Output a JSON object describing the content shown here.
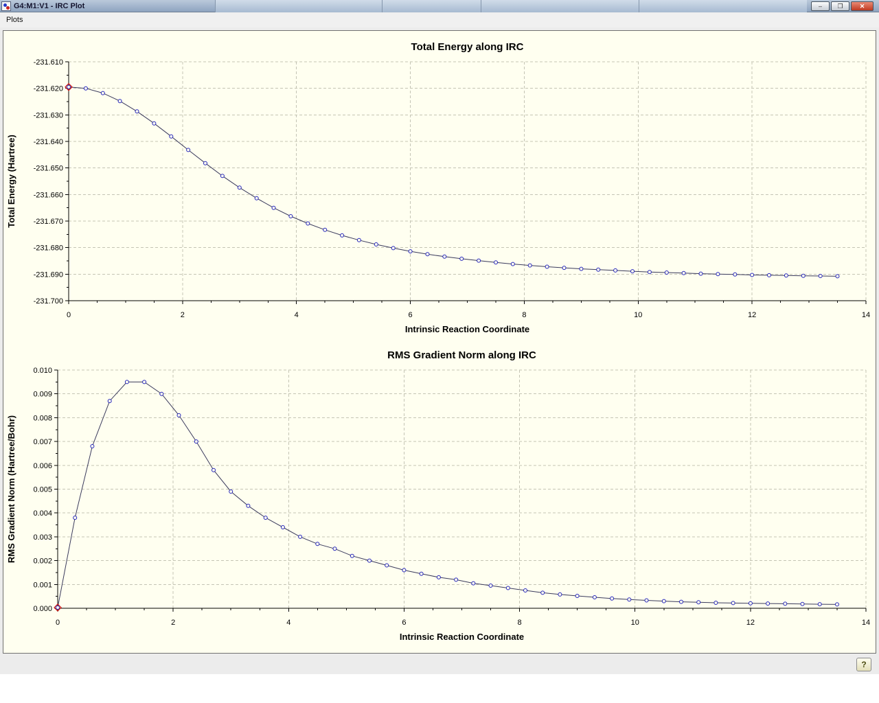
{
  "window": {
    "title": "G4:M1:V1 - IRC Plot",
    "controls": {
      "minimize": "–",
      "maximize": "❐",
      "close": "✕"
    }
  },
  "menu_bar": {
    "items": [
      {
        "label": "Plots"
      }
    ]
  },
  "status_bar": {
    "help_label": "?"
  },
  "colors": {
    "plot_bg": "#fffff0",
    "series_line": "#3a3a5c",
    "marker": "#2323bb",
    "first_marker": "#cc1111",
    "grid": "#c4c4b4",
    "titlebar": "#8ea4c0"
  },
  "chart_data": [
    {
      "type": "line",
      "title": "Total Energy along IRC",
      "xlabel": "Intrinsic Reaction Coordinate",
      "ylabel": "Total Energy (Hartree)",
      "xlim": [
        0,
        14
      ],
      "ylim": [
        -231.7,
        -231.61
      ],
      "grid": "dashed",
      "legend": "none",
      "marker": "circle",
      "highlight_first_point": true,
      "x_ticks": [
        0,
        2,
        4,
        6,
        8,
        10,
        12,
        14
      ],
      "x_tick_labels": [
        "0",
        "2",
        "4",
        "6",
        "8",
        "10",
        "12",
        "14"
      ],
      "y_ticks": [
        -231.61,
        -231.62,
        -231.63,
        -231.64,
        -231.65,
        -231.66,
        -231.67,
        -231.68,
        -231.69,
        -231.7
      ],
      "y_tick_labels": [
        "-231.610",
        "-231.620",
        "-231.630",
        "-231.640",
        "-231.650",
        "-231.660",
        "-231.670",
        "-231.680",
        "-231.690",
        "-231.700"
      ],
      "x": [
        0,
        0.3,
        0.6,
        0.9,
        1.2,
        1.5,
        1.8,
        2.1,
        2.4,
        2.7,
        3.0,
        3.3,
        3.6,
        3.9,
        4.2,
        4.5,
        4.8,
        5.1,
        5.4,
        5.7,
        6.0,
        6.3,
        6.6,
        6.9,
        7.2,
        7.5,
        7.8,
        8.1,
        8.4,
        8.7,
        9.0,
        9.3,
        9.6,
        9.9,
        10.2,
        10.5,
        10.8,
        11.1,
        11.4,
        11.7,
        12.0,
        12.3,
        12.6,
        12.9,
        13.2,
        13.5
      ],
      "y": [
        -231.6195,
        -231.62,
        -231.6218,
        -231.6248,
        -231.6287,
        -231.6332,
        -231.6381,
        -231.6432,
        -231.6482,
        -231.653,
        -231.6574,
        -231.6614,
        -231.665,
        -231.6682,
        -231.6709,
        -231.6733,
        -231.6754,
        -231.6772,
        -231.6788,
        -231.6802,
        -231.6814,
        -231.6825,
        -231.6834,
        -231.6842,
        -231.6849,
        -231.6856,
        -231.6862,
        -231.6867,
        -231.6872,
        -231.6876,
        -231.688,
        -231.6883,
        -231.6886,
        -231.6889,
        -231.6892,
        -231.6894,
        -231.6896,
        -231.6898,
        -231.69,
        -231.6901,
        -231.6903,
        -231.6904,
        -231.6905,
        -231.6906,
        -231.6907,
        -231.6908
      ]
    },
    {
      "type": "line",
      "title": "RMS Gradient Norm along IRC",
      "xlabel": "Intrinsic Reaction Coordinate",
      "ylabel": "RMS Gradient Norm (Hartree/Bohr)",
      "xlim": [
        0,
        14
      ],
      "ylim": [
        0.0,
        0.01
      ],
      "grid": "dashed",
      "legend": "none",
      "marker": "circle",
      "highlight_first_point": true,
      "x_ticks": [
        0,
        2,
        4,
        6,
        8,
        10,
        12,
        14
      ],
      "x_tick_labels": [
        "0",
        "2",
        "4",
        "6",
        "8",
        "10",
        "12",
        "14"
      ],
      "y_ticks": [
        0.0,
        0.001,
        0.002,
        0.003,
        0.004,
        0.005,
        0.006,
        0.007,
        0.008,
        0.009,
        0.01
      ],
      "y_tick_labels": [
        "0.000",
        "0.001",
        "0.002",
        "0.003",
        "0.004",
        "0.005",
        "0.006",
        "0.007",
        "0.008",
        "0.009",
        "0.010"
      ],
      "x": [
        0,
        0.3,
        0.6,
        0.9,
        1.2,
        1.5,
        1.8,
        2.1,
        2.4,
        2.7,
        3.0,
        3.3,
        3.6,
        3.9,
        4.2,
        4.5,
        4.8,
        5.1,
        5.4,
        5.7,
        6.0,
        6.3,
        6.6,
        6.9,
        7.2,
        7.5,
        7.8,
        8.1,
        8.4,
        8.7,
        9.0,
        9.3,
        9.6,
        9.9,
        10.2,
        10.5,
        10.8,
        11.1,
        11.4,
        11.7,
        12.0,
        12.3,
        12.6,
        12.9,
        13.2,
        13.5
      ],
      "y": [
        3e-05,
        0.0038,
        0.0068,
        0.0087,
        0.0095,
        0.0095,
        0.009,
        0.0081,
        0.007,
        0.0058,
        0.0049,
        0.0043,
        0.0038,
        0.0034,
        0.003,
        0.0027,
        0.0025,
        0.0022,
        0.002,
        0.0018,
        0.0016,
        0.00145,
        0.0013,
        0.0012,
        0.00105,
        0.00095,
        0.00085,
        0.00075,
        0.00065,
        0.00058,
        0.00052,
        0.00046,
        0.00041,
        0.00037,
        0.00033,
        0.0003,
        0.00027,
        0.00025,
        0.00023,
        0.00022,
        0.00021,
        0.0002,
        0.00019,
        0.00018,
        0.00017,
        0.00016
      ]
    }
  ]
}
